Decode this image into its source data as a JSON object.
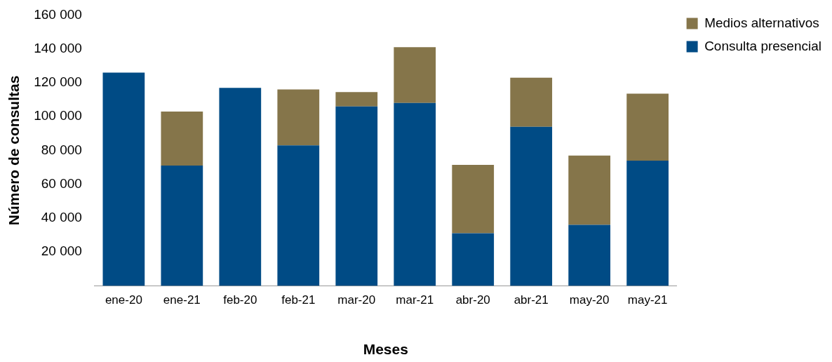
{
  "chart_data": {
    "type": "bar",
    "stacked": true,
    "xlabel": "Meses",
    "ylabel": "Número de consultas",
    "categories": [
      "ene-20",
      "ene-21",
      "feb-20",
      "feb-21",
      "mar-20",
      "mar-21",
      "abr-20",
      "abr-21",
      "may-20",
      "may-21"
    ],
    "series": [
      {
        "name": "Consulta presencial",
        "color": "#004b85",
        "values": [
          126000,
          71000,
          117000,
          83000,
          106000,
          108000,
          31000,
          94000,
          36000,
          74000
        ]
      },
      {
        "name": "Medios alternativos",
        "color": "#85754a",
        "values": [
          null,
          32000,
          null,
          33000,
          8500,
          33000,
          40500,
          29000,
          41000,
          39500
        ]
      }
    ],
    "ylim": [
      0,
      160000
    ],
    "yticks": [
      {
        "value": 0,
        "label": null
      },
      {
        "value": 20000,
        "label": "20 000"
      },
      {
        "value": 40000,
        "label": "40 000"
      },
      {
        "value": 60000,
        "label": "60 000"
      },
      {
        "value": 80000,
        "label": "80 000"
      },
      {
        "value": 100000,
        "label": "100 000"
      },
      {
        "value": 120000,
        "label": "120 000"
      },
      {
        "value": 140000,
        "label": "140 000"
      },
      {
        "value": 160000,
        "label": "160 000"
      }
    ],
    "grid": false,
    "legend": "top right"
  }
}
